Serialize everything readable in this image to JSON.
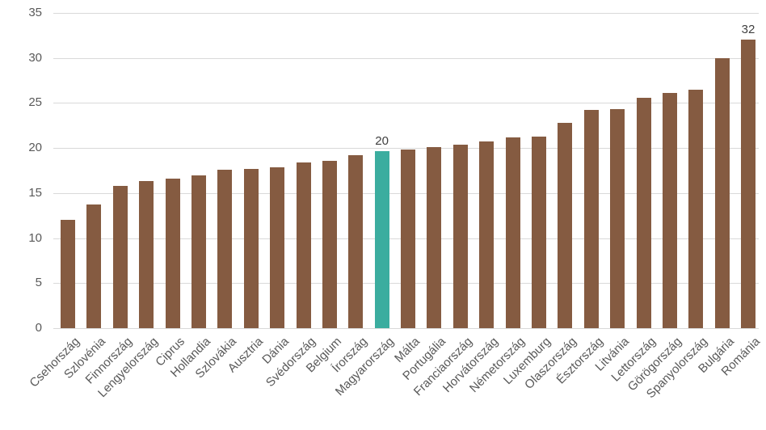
{
  "chart_data": {
    "type": "bar",
    "categories": [
      "Csehország",
      "Szlovénia",
      "Finnország",
      "Lengyelország",
      "Ciprus",
      "Hollandia",
      "Szlovákia",
      "Ausztria",
      "Dánia",
      "Svédország",
      "Belgium",
      "Írország",
      "Magyarország",
      "Málta",
      "Portugália",
      "Franciaország",
      "Horvátország",
      "Németország",
      "Luxemburg",
      "Olaszország",
      "Észtország",
      "Litvánia",
      "Lettország",
      "Görögország",
      "Spanyolország",
      "Bulgária",
      "Románia"
    ],
    "values": [
      12,
      13.7,
      15.8,
      16.3,
      16.6,
      17,
      17.6,
      17.7,
      17.9,
      18.4,
      18.6,
      19.2,
      19.7,
      19.8,
      20.1,
      20.4,
      20.7,
      21.2,
      21.3,
      22.8,
      24.2,
      24.3,
      25.6,
      26.1,
      26.5,
      30,
      32
    ],
    "highlight_index": 12,
    "data_labels": [
      {
        "index": 12,
        "text": "20"
      },
      {
        "index": 26,
        "text": "32"
      }
    ],
    "yticks": [
      0,
      5,
      10,
      15,
      20,
      25,
      30,
      35
    ],
    "ylim": [
      0,
      35
    ],
    "grid": true,
    "legend_position": "none",
    "bar_color": "#855B41",
    "highlight_color": "#3BAD9F",
    "gridline_color": "#D9D9D9",
    "axis_label_color": "#595959",
    "data_label_color": "#404040"
  }
}
